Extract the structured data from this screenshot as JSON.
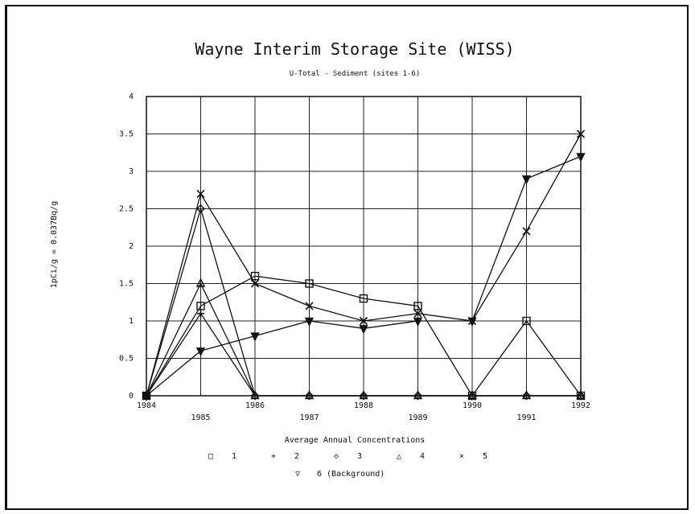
{
  "chart_data": {
    "type": "line",
    "title": "Wayne Interim Storage Site (WISS)",
    "subtitle": "U-Total - Sediment (sites 1-6)",
    "xlabel": "Average Annual Concentrations",
    "ylabel": "1pCi/g = 0.037Bq/g",
    "x": [
      1984,
      1985,
      1986,
      1987,
      1988,
      1989,
      1990,
      1991,
      1992
    ],
    "x_tick_labels": [
      "1984",
      "1985",
      "1986",
      "1987",
      "1988",
      "1989",
      "1990",
      "1991",
      "1992"
    ],
    "ylim": [
      0,
      4
    ],
    "y_ticks": [
      0,
      0.5,
      1,
      1.5,
      2,
      2.5,
      3,
      3.5,
      4
    ],
    "y_tick_labels": [
      "0",
      "0.5",
      "1",
      "1.5",
      "2",
      "2.5",
      "3",
      "3.5",
      "4"
    ],
    "grid": true,
    "legend_position": "bottom",
    "series": [
      {
        "name": "1",
        "marker": "square",
        "values": [
          0,
          1.2,
          1.6,
          1.5,
          1.3,
          1.2,
          0,
          1.0,
          0
        ]
      },
      {
        "name": "2",
        "marker": "plus",
        "values": [
          0,
          1.1,
          0,
          0,
          0,
          0,
          0,
          0,
          0
        ]
      },
      {
        "name": "3",
        "marker": "circle",
        "values": [
          0,
          2.5,
          0,
          0,
          0,
          0,
          0,
          0,
          0
        ]
      },
      {
        "name": "4",
        "marker": "triangle-up",
        "values": [
          0,
          1.5,
          0,
          0,
          0,
          0,
          0,
          0,
          0
        ]
      },
      {
        "name": "5",
        "marker": "x",
        "values": [
          0,
          2.7,
          1.5,
          1.2,
          1.0,
          1.1,
          1.0,
          2.2,
          3.5
        ]
      },
      {
        "name": "6 (Background)",
        "marker": "triangle-down",
        "values": [
          0,
          0.6,
          0.8,
          1.0,
          0.9,
          1.0,
          1.0,
          2.9,
          3.2
        ]
      }
    ]
  },
  "legend": {
    "row1": [
      {
        "symbol": "□",
        "label": "1"
      },
      {
        "symbol": "+",
        "label": "2"
      },
      {
        "symbol": "◇",
        "label": "3"
      },
      {
        "symbol": "△",
        "label": "4"
      },
      {
        "symbol": "×",
        "label": "5"
      }
    ],
    "row2": [
      {
        "symbol": "▽",
        "label": "6 (Background)"
      }
    ]
  }
}
